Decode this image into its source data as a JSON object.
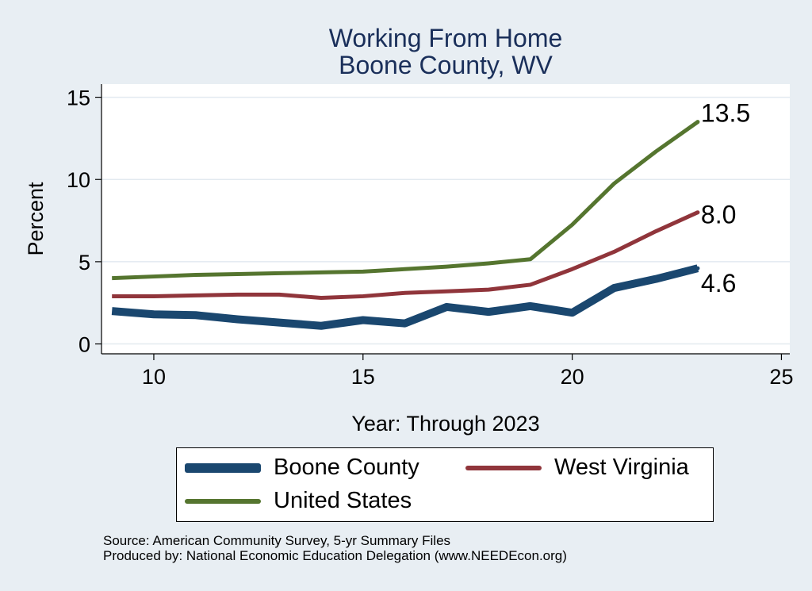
{
  "chart_data": {
    "type": "line",
    "title": "Working From Home",
    "subtitle": "Boone County, WV",
    "xlabel": "Year: Through 2023",
    "ylabel": "Percent",
    "xlim": [
      8.75,
      25.2
    ],
    "ylim": [
      -0.6,
      15.8
    ],
    "xticks": [
      10,
      15,
      20,
      25
    ],
    "yticks": [
      0,
      5,
      10,
      15
    ],
    "grid": true,
    "legend_position": "bottom",
    "x": [
      9,
      10,
      11,
      12,
      13,
      14,
      15,
      16,
      17,
      18,
      19,
      20,
      21,
      22,
      23
    ],
    "series": [
      {
        "name": "Boone County",
        "color": "#1a476f",
        "values": [
          2.0,
          1.8,
          1.75,
          1.5,
          1.3,
          1.1,
          1.45,
          1.25,
          2.25,
          1.95,
          2.3,
          1.9,
          3.4,
          3.95,
          4.6
        ],
        "end_label": "4.6"
      },
      {
        "name": "West Virginia",
        "color": "#90353b",
        "values": [
          2.9,
          2.9,
          2.95,
          3.0,
          3.0,
          2.8,
          2.9,
          3.1,
          3.2,
          3.3,
          3.6,
          4.55,
          5.6,
          6.85,
          8.0
        ],
        "end_label": "8.0"
      },
      {
        "name": "United States",
        "color": "#55752f",
        "values": [
          4.0,
          4.1,
          4.2,
          4.25,
          4.3,
          4.35,
          4.4,
          4.55,
          4.7,
          4.9,
          5.15,
          7.25,
          9.75,
          11.7,
          13.5
        ],
        "end_label": "13.5"
      }
    ]
  },
  "footer": {
    "source": "Source: American Community Survey, 5-yr Summary Files",
    "produced_by": "Produced by: National Economic Education Delegation (www.NEEDEcon.org)"
  }
}
